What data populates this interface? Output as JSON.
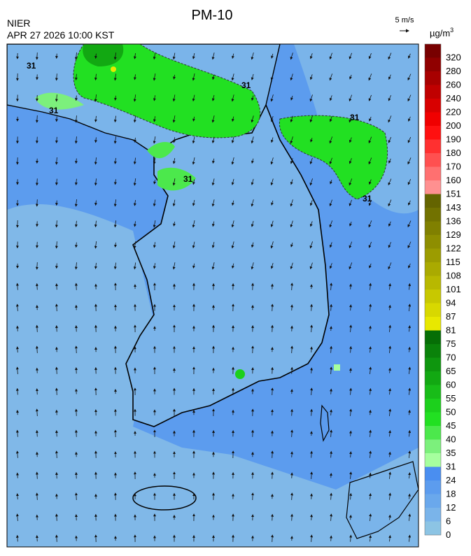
{
  "header": {
    "title": "PM-10",
    "agency": "NIER",
    "datetime": "APR 27 2026 10:00 KST"
  },
  "wind_scale": {
    "label": "5 m/s"
  },
  "colorbar": {
    "unit": "µg/m",
    "unit_exponent": "3",
    "ticks": [
      0,
      6,
      12,
      18,
      24,
      31,
      35,
      40,
      45,
      50,
      55,
      60,
      65,
      70,
      75,
      81,
      87,
      94,
      101,
      108,
      115,
      122,
      129,
      136,
      143,
      151,
      160,
      170,
      180,
      190,
      200,
      220,
      240,
      260,
      280,
      320
    ],
    "colors": [
      "#8cc4e4",
      "#7ab4ea",
      "#6aa8ec",
      "#5c9cee",
      "#4a8ef0",
      "#a6ff9e",
      "#7cf07c",
      "#4ce84c",
      "#22e022",
      "#1cd01c",
      "#18bc18",
      "#12a812",
      "#0e960e",
      "#0a820a",
      "#066e06",
      "#e8e800",
      "#d8d800",
      "#c8c800",
      "#b8b800",
      "#aaaa00",
      "#9c9c00",
      "#8e8e00",
      "#808000",
      "#727200",
      "#646400",
      "#ff9090",
      "#ff7070",
      "#ff5050",
      "#ff3030",
      "#ff1010",
      "#f00000",
      "#d80000",
      "#c00000",
      "#a80000",
      "#900000",
      "#780000"
    ]
  },
  "map": {
    "contour_label": "31"
  }
}
